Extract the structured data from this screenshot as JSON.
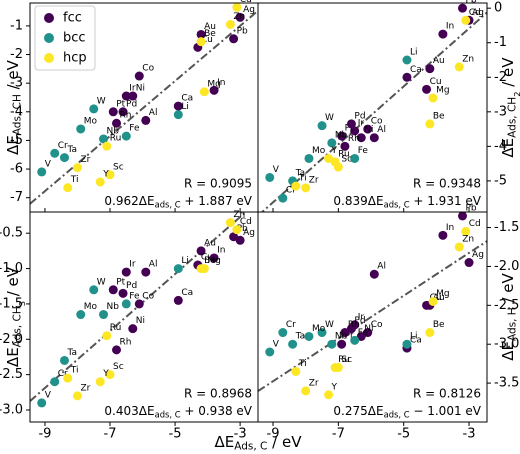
{
  "chart_data": [
    {
      "type": "scatter",
      "ylabel": [
        {
          "text": "ΔE"
        },
        {
          "text": "Ads, CH",
          "sub": 1
        },
        {
          "text": " / eV"
        }
      ],
      "y_axis_side": "left",
      "xlim": [
        -9.46,
        -2.45
      ],
      "xticks": [
        -9,
        -7,
        -5,
        -3
      ],
      "ylim": [
        -7.5,
        -0.2
      ],
      "yticks": [
        -7,
        -6,
        -5,
        -4,
        -3,
        -2,
        -1
      ],
      "legend": "upper left",
      "r_label": "R = 0.9095",
      "fit": {
        "slope": 0.962,
        "intercept": 1.887
      },
      "fit_label": [
        {
          "text": "0.962ΔE"
        },
        {
          "text": "ads, C",
          "sub": 1
        },
        {
          "text": " + 1.887 eV"
        }
      ],
      "series": [
        {
          "name": "fcc",
          "color": "#440154",
          "labels": [
            "Pb",
            "Ag",
            "Au",
            "Cu",
            "In",
            "Co",
            "Ir",
            "Ni",
            "Pt",
            "Pd",
            "Rh",
            "Al",
            "Ca"
          ],
          "x": [
            -3.2,
            -3.0,
            -4.2,
            -4.3,
            -3.8,
            -6.1,
            -6.5,
            -6.3,
            -6.9,
            -6.6,
            -6.8,
            -5.9,
            -4.9
          ],
          "values": [
            -1.45,
            -0.7,
            -1.3,
            -1.75,
            -3.25,
            -2.75,
            -3.45,
            -3.45,
            -4.0,
            -4.0,
            -4.4,
            -4.3,
            -3.8
          ]
        },
        {
          "name": "bcc",
          "color": "#21918c",
          "labels": [
            "W",
            "Mo",
            "Nb",
            "Fe",
            "Cr",
            "Ta",
            "V",
            "Li"
          ],
          "x": [
            -7.5,
            -7.9,
            -7.2,
            -6.5,
            -8.7,
            -8.4,
            -9.1,
            -4.9
          ],
          "values": [
            -3.9,
            -4.6,
            -4.95,
            -4.85,
            -5.45,
            -5.6,
            -6.1,
            -4.1
          ]
        },
        {
          "name": "hcp",
          "color": "#fde725",
          "labels": [
            "Cd",
            "Zn",
            "Be",
            "Mg",
            "Sc",
            "Y",
            "Zr",
            "Ti",
            "Ru"
          ],
          "x": [
            -3.1,
            -3.3,
            -4.2,
            -4.1,
            -7.0,
            -7.3,
            -8.0,
            -8.3,
            -7.1
          ],
          "values": [
            -0.35,
            -0.95,
            -1.55,
            -3.3,
            -6.2,
            -6.45,
            -5.95,
            -6.65,
            -5.2
          ]
        }
      ]
    },
    {
      "type": "scatter",
      "ylabel": [
        {
          "text": "ΔE"
        },
        {
          "text": "Ads, CH",
          "sub": 1
        },
        {
          "text": "2",
          "sub": 2
        },
        {
          "text": " / eV"
        }
      ],
      "y_axis_side": "right",
      "xlim": [
        -9.46,
        -2.45
      ],
      "xticks": [
        -9,
        -7,
        -5,
        -3
      ],
      "ylim": [
        -5.9,
        0.15
      ],
      "yticks": [
        -5,
        -4,
        -3,
        -2,
        -1,
        0
      ],
      "r_label": "R = 0.9348",
      "fit": {
        "slope": 0.839,
        "intercept": 1.931
      },
      "fit_label": [
        {
          "text": "0.839ΔE"
        },
        {
          "text": "ads, C",
          "sub": 1
        },
        {
          "text": " + 1.931 eV"
        }
      ],
      "series": [
        {
          "name": "fcc",
          "color": "#440154",
          "labels": [
            "Pb",
            "Ag",
            "Au",
            "Cu",
            "In",
            "Co",
            "Ir",
            "Ni",
            "Pt",
            "Pd",
            "Rh",
            "Al",
            "Ca"
          ],
          "x": [
            -3.2,
            -3.0,
            -4.2,
            -4.3,
            -3.8,
            -6.1,
            -6.5,
            -6.3,
            -6.9,
            -6.6,
            -6.8,
            -5.9,
            -4.9
          ],
          "values": [
            0.0,
            -0.35,
            -1.75,
            -2.35,
            -0.75,
            -3.5,
            -3.55,
            -3.75,
            -3.7,
            -3.35,
            -4.0,
            -3.75,
            -2.0
          ]
        },
        {
          "name": "bcc",
          "color": "#21918c",
          "labels": [
            "W",
            "Mo",
            "Nb",
            "Fe",
            "Cr",
            "Ta",
            "V",
            "Li"
          ],
          "x": [
            -7.5,
            -7.9,
            -7.2,
            -6.5,
            -8.7,
            -8.4,
            -9.1,
            -4.9
          ],
          "values": [
            -3.4,
            -4.35,
            -3.9,
            -4.35,
            -5.5,
            -5.0,
            -4.9,
            -1.5
          ]
        },
        {
          "name": "hcp",
          "color": "#fde725",
          "labels": [
            "Cd",
            "Zn",
            "Be",
            "Mg",
            "Sc",
            "Y",
            "Zr",
            "Ti",
            "Ru"
          ],
          "x": [
            -3.1,
            -3.3,
            -4.2,
            -4.1,
            -7.0,
            -7.3,
            -8.0,
            -8.3,
            -7.1
          ],
          "values": [
            -0.35,
            -1.7,
            -3.35,
            -2.6,
            -4.6,
            -4.35,
            -5.2,
            -5.15,
            -4.45
          ]
        }
      ]
    },
    {
      "type": "scatter",
      "ylabel": [
        {
          "text": "ΔE"
        },
        {
          "text": "Ads, CH",
          "sub": 1
        },
        {
          "text": "3",
          "sub": 2
        },
        {
          "text": " / eV"
        }
      ],
      "y_axis_side": "left",
      "xlabel": [
        {
          "text": "ΔE"
        },
        {
          "text": "Ads, C",
          "sub": 1
        },
        {
          "text": " / eV"
        }
      ],
      "xlim": [
        -9.46,
        -2.45
      ],
      "xticks": [
        -9,
        -7,
        -5,
        -3
      ],
      "ylim": [
        -3.17,
        -0.2
      ],
      "yticks": [
        {
          "value": -3,
          "label": "-3.0"
        },
        -2.5,
        {
          "value": -2,
          "label": "-2.0"
        },
        -1.5,
        {
          "value": -1,
          "label": "-1.0"
        },
        -0.5
      ],
      "r_label": "R = 0.8968",
      "fit": {
        "slope": 0.403,
        "intercept": 0.938
      },
      "fit_label": [
        {
          "text": "0.403ΔE"
        },
        {
          "text": "ads, C",
          "sub": 1
        },
        {
          "text": " + 0.938 eV"
        }
      ],
      "series": [
        {
          "name": "fcc",
          "color": "#440154",
          "labels": [
            "Pb",
            "Ag",
            "Au",
            "Cu",
            "In",
            "Co",
            "Ir",
            "Ni",
            "Pt",
            "Pd",
            "Rh",
            "Al",
            "Ca"
          ],
          "x": [
            -3.2,
            -3.0,
            -4.2,
            -4.3,
            -3.8,
            -6.1,
            -6.5,
            -6.3,
            -6.9,
            -6.6,
            -6.8,
            -5.9,
            -4.9
          ],
          "values": [
            -0.55,
            -0.6,
            -0.75,
            -0.95,
            -0.85,
            -1.5,
            -1.05,
            -1.85,
            -1.3,
            -1.35,
            -2.15,
            -1.05,
            -1.45
          ]
        },
        {
          "name": "bcc",
          "color": "#21918c",
          "labels": [
            "W",
            "Mo",
            "Nb",
            "Fe",
            "Cr",
            "Ta",
            "V",
            "Li"
          ],
          "x": [
            -7.5,
            -7.9,
            -7.2,
            -6.5,
            -8.7,
            -8.4,
            -9.1,
            -4.9
          ],
          "values": [
            -1.3,
            -1.65,
            -1.65,
            -1.5,
            -2.6,
            -2.3,
            -2.9,
            -1.0
          ]
        },
        {
          "name": "hcp",
          "color": "#fde725",
          "labels": [
            "Cd",
            "Zn",
            "Be",
            "Mg",
            "Sc",
            "Y",
            "Zr",
            "Ti",
            "Ru"
          ],
          "x": [
            -3.1,
            -3.3,
            -4.2,
            -4.1,
            -7.0,
            -7.3,
            -8.0,
            -8.3,
            -7.1
          ],
          "values": [
            -0.45,
            -0.35,
            -1.0,
            -1.0,
            -2.5,
            -2.6,
            -2.8,
            -2.55,
            -1.95
          ]
        }
      ]
    },
    {
      "type": "scatter",
      "ylabel": [
        {
          "text": "ΔE"
        },
        {
          "text": "Ads, H",
          "sub": 1
        },
        {
          "text": " / eV"
        }
      ],
      "y_axis_side": "right",
      "xlim": [
        -9.46,
        -2.45
      ],
      "xticks": [
        -9,
        -7,
        -5,
        -3
      ],
      "ylim": [
        -4.0,
        -1.3
      ],
      "yticks": [
        -3.5,
        {
          "value": -3,
          "label": "-3.0"
        },
        -2.5,
        {
          "value": -2,
          "label": "-2.0"
        },
        -1.5
      ],
      "r_label": "R = 0.8126",
      "fit": {
        "slope": 0.275,
        "intercept": -1.001
      },
      "fit_label": [
        {
          "text": "0.275ΔE"
        },
        {
          "text": "ads, C",
          "sub": 1
        },
        {
          "text": " − 1.001 eV"
        }
      ],
      "series": [
        {
          "name": "fcc",
          "color": "#440154",
          "labels": [
            "Pb",
            "Ag",
            "Au",
            "Cu",
            "In",
            "Co",
            "Ir",
            "Ni",
            "Pt",
            "Pd",
            "Rh",
            "Al",
            "Ca"
          ],
          "x": [
            -3.2,
            -3.0,
            -4.2,
            -4.3,
            -3.8,
            -6.1,
            -6.5,
            -6.3,
            -6.9,
            -6.6,
            -6.8,
            -5.9,
            -4.9
          ],
          "values": [
            -1.35,
            -1.95,
            -2.5,
            -2.5,
            -1.6,
            -2.85,
            -2.75,
            -2.9,
            -3.0,
            -2.8,
            -2.85,
            -2.1,
            -3.05
          ]
        },
        {
          "name": "bcc",
          "color": "#21918c",
          "labels": [
            "W",
            "Mo",
            "Nb",
            "Fe",
            "Cr",
            "Ta",
            "V",
            "Li"
          ],
          "x": [
            -7.5,
            -7.9,
            -7.2,
            -6.5,
            -8.7,
            -8.4,
            -9.1,
            -4.9
          ],
          "values": [
            -2.85,
            -2.9,
            -3.0,
            -2.95,
            -2.85,
            -3.0,
            -3.1,
            -3.0
          ]
        },
        {
          "name": "hcp",
          "color": "#fde725",
          "labels": [
            "Cd",
            "Zn",
            "Be",
            "Mg",
            "Sc",
            "Y",
            "Zr",
            "Ti",
            "Ru"
          ],
          "x": [
            -3.1,
            -3.3,
            -4.2,
            -4.1,
            -7.0,
            -7.3,
            -8.0,
            -8.3,
            -7.1
          ],
          "values": [
            -1.55,
            -1.75,
            -2.85,
            -2.45,
            -3.3,
            -3.65,
            -3.6,
            -3.35,
            -3.3
          ]
        }
      ]
    }
  ]
}
